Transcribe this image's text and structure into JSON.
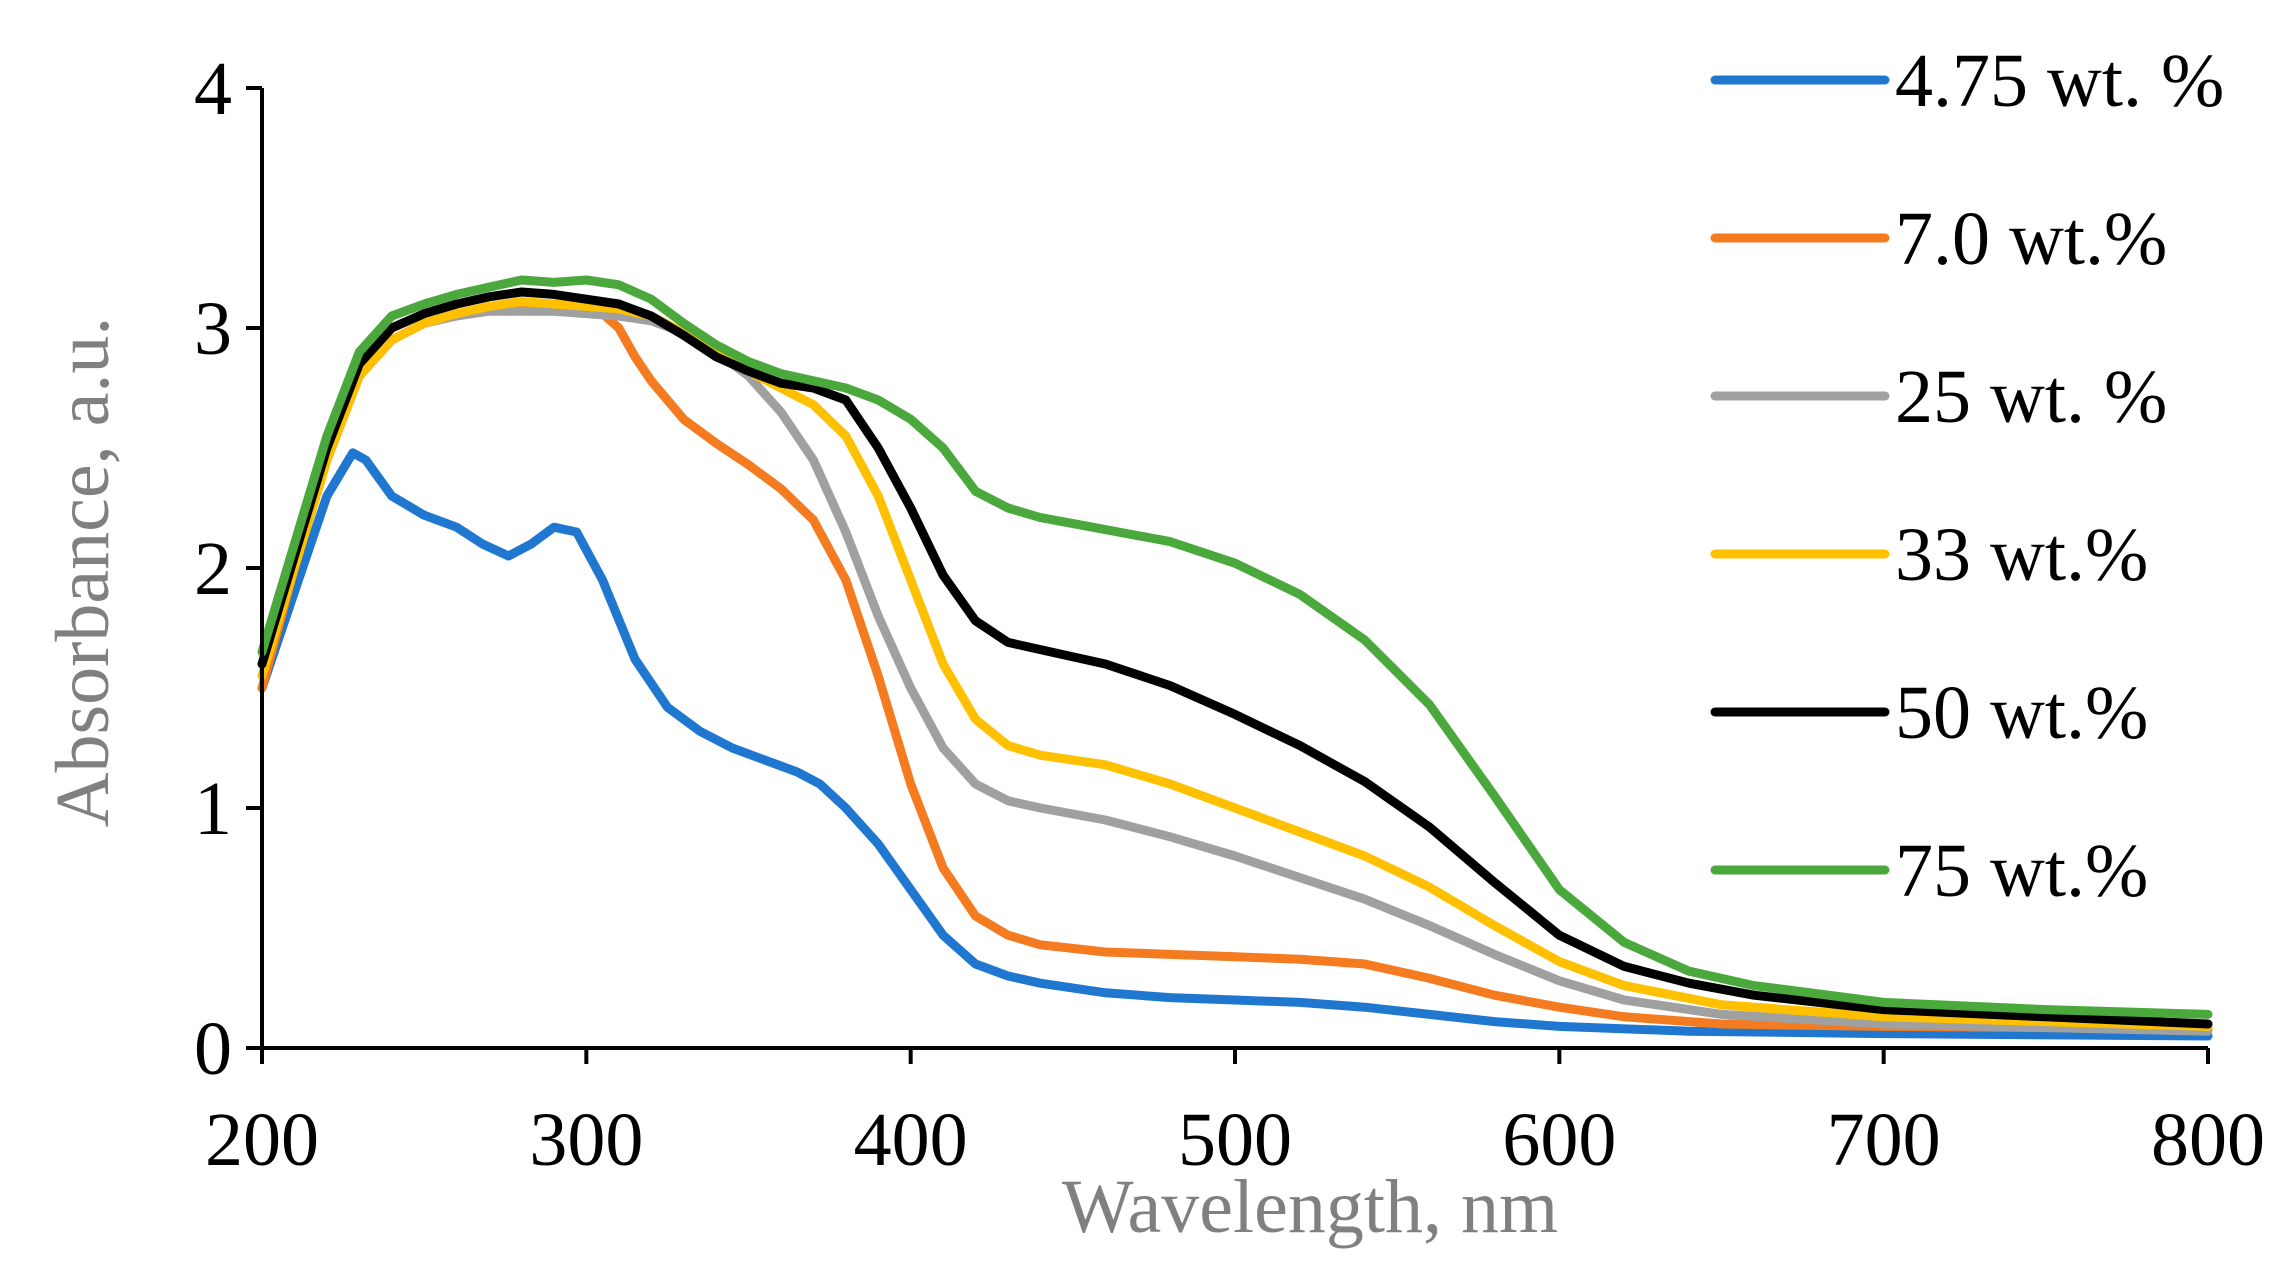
{
  "chart_data": {
    "type": "line",
    "title": "",
    "xlabel": "Wavelength, nm",
    "ylabel": "Absorbance, a.u.",
    "xlim": [
      200,
      800
    ],
    "ylim": [
      0,
      4
    ],
    "xticks": [
      "200",
      "300",
      "400",
      "500",
      "600",
      "700",
      "800"
    ],
    "yticks": [
      "0",
      "1",
      "2",
      "3",
      "4"
    ],
    "grid": false,
    "legend_position": "right",
    "series": [
      {
        "name": "4.75 wt. %",
        "color": "#1f77d0",
        "points": [
          [
            200,
            1.5
          ],
          [
            210,
            1.9
          ],
          [
            220,
            2.3
          ],
          [
            228,
            2.48
          ],
          [
            232,
            2.45
          ],
          [
            240,
            2.3
          ],
          [
            250,
            2.22
          ],
          [
            260,
            2.17
          ],
          [
            268,
            2.1
          ],
          [
            276,
            2.05
          ],
          [
            283,
            2.1
          ],
          [
            290,
            2.17
          ],
          [
            297,
            2.15
          ],
          [
            305,
            1.95
          ],
          [
            315,
            1.62
          ],
          [
            325,
            1.42
          ],
          [
            335,
            1.32
          ],
          [
            345,
            1.25
          ],
          [
            355,
            1.2
          ],
          [
            365,
            1.15
          ],
          [
            372,
            1.1
          ],
          [
            380,
            1.0
          ],
          [
            390,
            0.85
          ],
          [
            400,
            0.66
          ],
          [
            410,
            0.47
          ],
          [
            420,
            0.35
          ],
          [
            430,
            0.3
          ],
          [
            440,
            0.27
          ],
          [
            460,
            0.23
          ],
          [
            480,
            0.21
          ],
          [
            500,
            0.2
          ],
          [
            520,
            0.19
          ],
          [
            540,
            0.17
          ],
          [
            560,
            0.14
          ],
          [
            580,
            0.11
          ],
          [
            600,
            0.09
          ],
          [
            640,
            0.07
          ],
          [
            700,
            0.06
          ],
          [
            800,
            0.05
          ]
        ]
      },
      {
        "name": "7.0 wt.%",
        "color": "#f47b20",
        "points": [
          [
            200,
            1.5
          ],
          [
            210,
            2.0
          ],
          [
            220,
            2.45
          ],
          [
            230,
            2.8
          ],
          [
            240,
            2.95
          ],
          [
            250,
            3.02
          ],
          [
            260,
            3.06
          ],
          [
            270,
            3.08
          ],
          [
            280,
            3.08
          ],
          [
            290,
            3.08
          ],
          [
            300,
            3.08
          ],
          [
            305,
            3.06
          ],
          [
            310,
            3.0
          ],
          [
            315,
            2.88
          ],
          [
            320,
            2.78
          ],
          [
            330,
            2.62
          ],
          [
            340,
            2.52
          ],
          [
            350,
            2.43
          ],
          [
            360,
            2.33
          ],
          [
            370,
            2.2
          ],
          [
            380,
            1.95
          ],
          [
            390,
            1.55
          ],
          [
            400,
            1.1
          ],
          [
            410,
            0.75
          ],
          [
            420,
            0.55
          ],
          [
            430,
            0.47
          ],
          [
            440,
            0.43
          ],
          [
            460,
            0.4
          ],
          [
            480,
            0.39
          ],
          [
            500,
            0.38
          ],
          [
            520,
            0.37
          ],
          [
            540,
            0.35
          ],
          [
            560,
            0.29
          ],
          [
            580,
            0.22
          ],
          [
            600,
            0.17
          ],
          [
            620,
            0.13
          ],
          [
            650,
            0.1
          ],
          [
            700,
            0.09
          ],
          [
            800,
            0.08
          ]
        ]
      },
      {
        "name": "25 wt. %",
        "color": "#a0a0a0",
        "points": [
          [
            200,
            1.55
          ],
          [
            210,
            2.0
          ],
          [
            220,
            2.45
          ],
          [
            230,
            2.8
          ],
          [
            240,
            2.95
          ],
          [
            250,
            3.02
          ],
          [
            260,
            3.05
          ],
          [
            270,
            3.07
          ],
          [
            280,
            3.07
          ],
          [
            290,
            3.07
          ],
          [
            300,
            3.06
          ],
          [
            310,
            3.05
          ],
          [
            320,
            3.03
          ],
          [
            330,
            2.98
          ],
          [
            340,
            2.9
          ],
          [
            350,
            2.8
          ],
          [
            360,
            2.65
          ],
          [
            370,
            2.45
          ],
          [
            380,
            2.15
          ],
          [
            390,
            1.8
          ],
          [
            400,
            1.5
          ],
          [
            410,
            1.25
          ],
          [
            420,
            1.1
          ],
          [
            430,
            1.03
          ],
          [
            440,
            1.0
          ],
          [
            460,
            0.95
          ],
          [
            480,
            0.88
          ],
          [
            500,
            0.8
          ],
          [
            520,
            0.71
          ],
          [
            540,
            0.62
          ],
          [
            560,
            0.51
          ],
          [
            580,
            0.39
          ],
          [
            600,
            0.28
          ],
          [
            620,
            0.2
          ],
          [
            650,
            0.14
          ],
          [
            700,
            0.1
          ],
          [
            800,
            0.07
          ]
        ]
      },
      {
        "name": "33 wt.%",
        "color": "#ffc000",
        "points": [
          [
            200,
            1.55
          ],
          [
            210,
            2.0
          ],
          [
            220,
            2.45
          ],
          [
            230,
            2.8
          ],
          [
            240,
            2.95
          ],
          [
            250,
            3.02
          ],
          [
            260,
            3.06
          ],
          [
            270,
            3.09
          ],
          [
            280,
            3.11
          ],
          [
            290,
            3.1
          ],
          [
            300,
            3.09
          ],
          [
            310,
            3.08
          ],
          [
            320,
            3.05
          ],
          [
            330,
            2.98
          ],
          [
            340,
            2.9
          ],
          [
            350,
            2.82
          ],
          [
            360,
            2.75
          ],
          [
            370,
            2.68
          ],
          [
            380,
            2.55
          ],
          [
            390,
            2.3
          ],
          [
            400,
            1.95
          ],
          [
            410,
            1.6
          ],
          [
            420,
            1.37
          ],
          [
            430,
            1.26
          ],
          [
            440,
            1.22
          ],
          [
            460,
            1.18
          ],
          [
            480,
            1.1
          ],
          [
            500,
            1.0
          ],
          [
            520,
            0.9
          ],
          [
            540,
            0.8
          ],
          [
            560,
            0.67
          ],
          [
            580,
            0.51
          ],
          [
            600,
            0.36
          ],
          [
            620,
            0.26
          ],
          [
            650,
            0.18
          ],
          [
            700,
            0.13
          ],
          [
            800,
            0.09
          ]
        ]
      },
      {
        "name": "50 wt.%",
        "color": "#000000",
        "points": [
          [
            200,
            1.6
          ],
          [
            210,
            2.05
          ],
          [
            220,
            2.5
          ],
          [
            230,
            2.85
          ],
          [
            240,
            3.0
          ],
          [
            250,
            3.06
          ],
          [
            260,
            3.1
          ],
          [
            270,
            3.13
          ],
          [
            280,
            3.15
          ],
          [
            290,
            3.14
          ],
          [
            300,
            3.12
          ],
          [
            310,
            3.1
          ],
          [
            320,
            3.05
          ],
          [
            330,
            2.97
          ],
          [
            340,
            2.88
          ],
          [
            350,
            2.82
          ],
          [
            360,
            2.77
          ],
          [
            370,
            2.75
          ],
          [
            380,
            2.7
          ],
          [
            390,
            2.5
          ],
          [
            400,
            2.25
          ],
          [
            410,
            1.97
          ],
          [
            420,
            1.78
          ],
          [
            430,
            1.69
          ],
          [
            440,
            1.66
          ],
          [
            460,
            1.6
          ],
          [
            480,
            1.51
          ],
          [
            500,
            1.39
          ],
          [
            520,
            1.26
          ],
          [
            540,
            1.11
          ],
          [
            560,
            0.92
          ],
          [
            580,
            0.69
          ],
          [
            600,
            0.47
          ],
          [
            620,
            0.34
          ],
          [
            640,
            0.27
          ],
          [
            660,
            0.22
          ],
          [
            700,
            0.16
          ],
          [
            750,
            0.13
          ],
          [
            800,
            0.1
          ]
        ]
      },
      {
        "name": "75 wt.%",
        "color": "#4aa83c",
        "points": [
          [
            200,
            1.65
          ],
          [
            210,
            2.1
          ],
          [
            220,
            2.55
          ],
          [
            230,
            2.9
          ],
          [
            240,
            3.05
          ],
          [
            250,
            3.1
          ],
          [
            260,
            3.14
          ],
          [
            270,
            3.17
          ],
          [
            280,
            3.2
          ],
          [
            290,
            3.19
          ],
          [
            300,
            3.2
          ],
          [
            310,
            3.18
          ],
          [
            320,
            3.12
          ],
          [
            330,
            3.02
          ],
          [
            340,
            2.93
          ],
          [
            350,
            2.86
          ],
          [
            360,
            2.81
          ],
          [
            370,
            2.78
          ],
          [
            380,
            2.75
          ],
          [
            390,
            2.7
          ],
          [
            400,
            2.62
          ],
          [
            410,
            2.5
          ],
          [
            420,
            2.32
          ],
          [
            430,
            2.25
          ],
          [
            440,
            2.21
          ],
          [
            460,
            2.16
          ],
          [
            480,
            2.11
          ],
          [
            500,
            2.02
          ],
          [
            520,
            1.89
          ],
          [
            540,
            1.7
          ],
          [
            560,
            1.43
          ],
          [
            580,
            1.05
          ],
          [
            600,
            0.66
          ],
          [
            620,
            0.44
          ],
          [
            640,
            0.32
          ],
          [
            660,
            0.26
          ],
          [
            700,
            0.19
          ],
          [
            750,
            0.16
          ],
          [
            800,
            0.14
          ]
        ]
      }
    ]
  }
}
